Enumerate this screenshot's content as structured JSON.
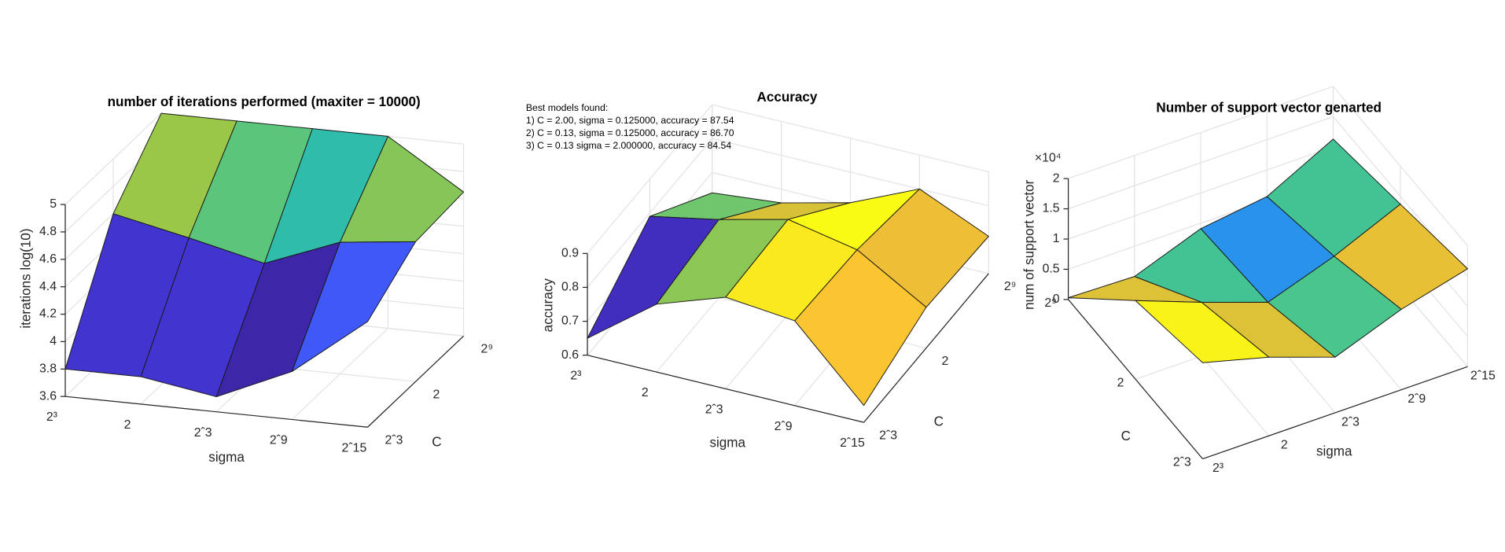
{
  "chart_data": [
    {
      "type": "surface",
      "title": "number of iterations performed (maxiter = 10000)",
      "x_label": "sigma",
      "y_label": "C",
      "z_label": "iterations log(10)",
      "x_categories": [
        "2³",
        "2",
        "2ˆ3",
        "2ˆ9",
        "2ˆ15"
      ],
      "y_categories": [
        "2ˆ3",
        "2",
        "2⁹"
      ],
      "z": [
        [
          3.8,
          3.8,
          3.71,
          3.95,
          4.37
        ],
        [
          4.6,
          4.48,
          4.35,
          4.56,
          4.62
        ],
        [
          5.0,
          5.0,
          5.0,
          5.0,
          4.65
        ]
      ],
      "zlim": [
        3.6,
        5
      ],
      "zticks": [
        3.6,
        3.8,
        4,
        4.2,
        4.4,
        4.6,
        4.8,
        5
      ],
      "grid": true,
      "colormap": [
        "#3e26a8",
        "#4743f8",
        "#2d8af4",
        "#17b3c9",
        "#4bc58a",
        "#acc73a",
        "#fbbd35",
        "#f9fb15"
      ]
    },
    {
      "type": "surface",
      "title": "Accuracy",
      "annotation": [
        "Best models found:",
        "1) C = 2.00, sigma = 0.125000, accuracy = 87.54",
        "2) C = 0.13, sigma = 0.125000, accuracy = 86.70",
        "3) C = 0.13 sigma = 2.000000, accuracy = 84.54"
      ],
      "x_label": "sigma",
      "y_label": "C",
      "z_label": "accuracy",
      "x_categories": [
        "2³",
        "2",
        "2ˆ3",
        "2ˆ9",
        "2ˆ15"
      ],
      "y_categories": [
        "2ˆ3",
        "2",
        "2⁹"
      ],
      "z": [
        [
          0.65,
          0.8,
          0.87,
          0.85,
          0.65
        ],
        [
          0.79,
          0.83,
          0.88,
          0.84,
          0.72
        ],
        [
          0.64,
          0.66,
          0.71,
          0.8,
          0.71
        ]
      ],
      "zlim": [
        0.6,
        0.9
      ],
      "zticks": [
        0.6,
        0.7,
        0.8,
        0.9
      ],
      "grid": true,
      "colormap": [
        "#3e26a8",
        "#4743f8",
        "#2d8af4",
        "#17b3c9",
        "#4bc58a",
        "#acc73a",
        "#fbbd35",
        "#f9fb15"
      ]
    },
    {
      "type": "surface",
      "title": "Number of support vector genarted",
      "x_label": "sigma",
      "y_label": "C",
      "z_label": "num of support vector",
      "z_exponent": "×10⁴",
      "x_categories": [
        "2³",
        "2",
        "2ˆ3",
        "2ˆ9",
        "2ˆ15"
      ],
      "y_categories": [
        "2ˆ3",
        "2",
        "2⁹"
      ],
      "z": [
        [
          1.59,
          1.3,
          0.92,
          1.33,
          1.62
        ],
        [
          1.3,
          0.89,
          0.51,
          0.89,
          1.37
        ],
        [
          0.03,
          0,
          0.41,
          0.56,
          1.13
        ]
      ],
      "zlim": [
        0,
        2
      ],
      "zticks": [
        0,
        0.5,
        1,
        1.5,
        2
      ],
      "grid": true,
      "colormap": [
        "#3e26a8",
        "#4743f8",
        "#2d8af4",
        "#17b3c9",
        "#4bc58a",
        "#acc73a",
        "#fbbd35",
        "#f9fb15"
      ]
    }
  ]
}
